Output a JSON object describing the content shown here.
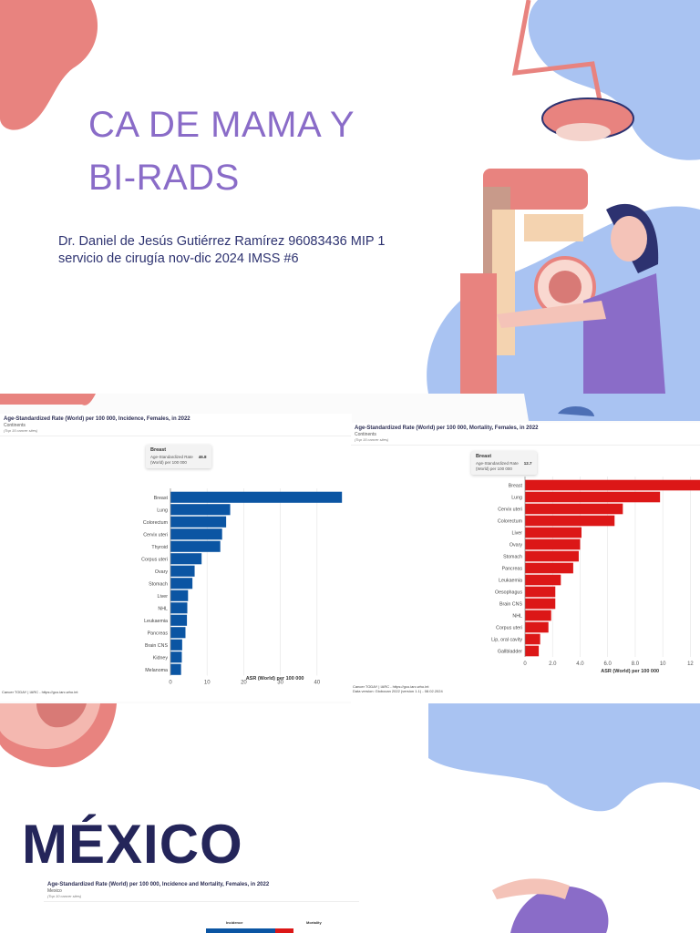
{
  "slide1": {
    "title_line1": "CA DE MAMA Y",
    "title_line2": "BI-RADS",
    "author": "Dr. Daniel de Jesús Gutiérrez Ramírez 96083436 MIP 1",
    "service": "servicio de cirugía nov-dic 2024 IMSS #6"
  },
  "slide3": {
    "title": "MÉXICO"
  },
  "colors": {
    "accent": "#8a6cc8",
    "navy": "#24255a",
    "pink": "#e8837f",
    "blue": "#a9c3f2",
    "incidence": "#0b55a3",
    "mortality": "#dc1717"
  },
  "chart_data": [
    {
      "type": "bar",
      "title": "Age-Standardized Rate (World) per 100 000, Incidence, Females, in 2022",
      "subtitle": "Continents",
      "note": "(Top 15 cancer sites)",
      "tooltip": {
        "label": "Breast",
        "text1": "Age-Standardized Rate",
        "text2": "(World) per 100 000",
        "value": "46.8"
      },
      "categories": [
        "Breast",
        "Lung",
        "Colorectum",
        "Cervix uteri",
        "Thyroid",
        "Corpus uteri",
        "Ovary",
        "Stomach",
        "Liver",
        "NHL",
        "Leukaemia",
        "Pancreas",
        "Brain CNS",
        "Kidney",
        "Melanoma"
      ],
      "values": [
        46.8,
        16.3,
        15.2,
        14.1,
        13.6,
        8.5,
        6.6,
        6.0,
        4.8,
        4.6,
        4.5,
        4.1,
        3.2,
        3.1,
        2.9
      ],
      "xticks": [
        "0",
        "10",
        "20",
        "30",
        "40"
      ],
      "tickvals": [
        0,
        10,
        20,
        30,
        40
      ],
      "xlim": [
        0,
        47.5
      ],
      "xlabel": "ASR (World) per 100 000",
      "footer": "Cancer TODAY | IARC - https://gco.iarc.who.int",
      "color": "#0b55a3"
    },
    {
      "type": "bar",
      "title": "Age-Standardized Rate (World) per 100 000, Mortality, Females, in 2022",
      "subtitle": "Continents",
      "note": "(Top 15 cancer sites)",
      "tooltip": {
        "label": "Breast",
        "text1": "Age-Standardized Rate",
        "text2": "(World) per 100 000",
        "value": "12.7"
      },
      "categories": [
        "Breast",
        "Lung",
        "Cervix uteri",
        "Colorectum",
        "Liver",
        "Ovary",
        "Stomach",
        "Pancreas",
        "Leukaemia",
        "Oesophagus",
        "Brain CNS",
        "NHL",
        "Corpus uteri",
        "Lip, oral cavity",
        "Gallbladder"
      ],
      "values": [
        12.7,
        9.8,
        7.1,
        6.5,
        4.1,
        4.0,
        3.9,
        3.5,
        2.6,
        2.2,
        2.2,
        1.9,
        1.7,
        1.1,
        1.0
      ],
      "xticks": [
        "0",
        "2.0",
        "4.0",
        "6.0",
        "8.0",
        "10",
        "12"
      ],
      "tickvals": [
        0,
        2,
        4,
        6,
        8,
        10,
        12
      ],
      "xlim": [
        0,
        12.7
      ],
      "xlabel": "ASR (World) per 100 000",
      "footer": "Cancer TODAY | IARC - https://gco.iarc.who.int",
      "footer2": "Data version: Globocan 2022 (version 1.1) - 08.02.2024",
      "color": "#dc1717"
    },
    {
      "type": "bar",
      "title": "Age-Standardized Rate (World) per 100 000, Incidence and Mortality, Females, in 2022",
      "subtitle": "Mexico",
      "note": "(Top 10 cancer sites)",
      "legend": [
        "Incidence",
        "Mortality"
      ]
    }
  ]
}
